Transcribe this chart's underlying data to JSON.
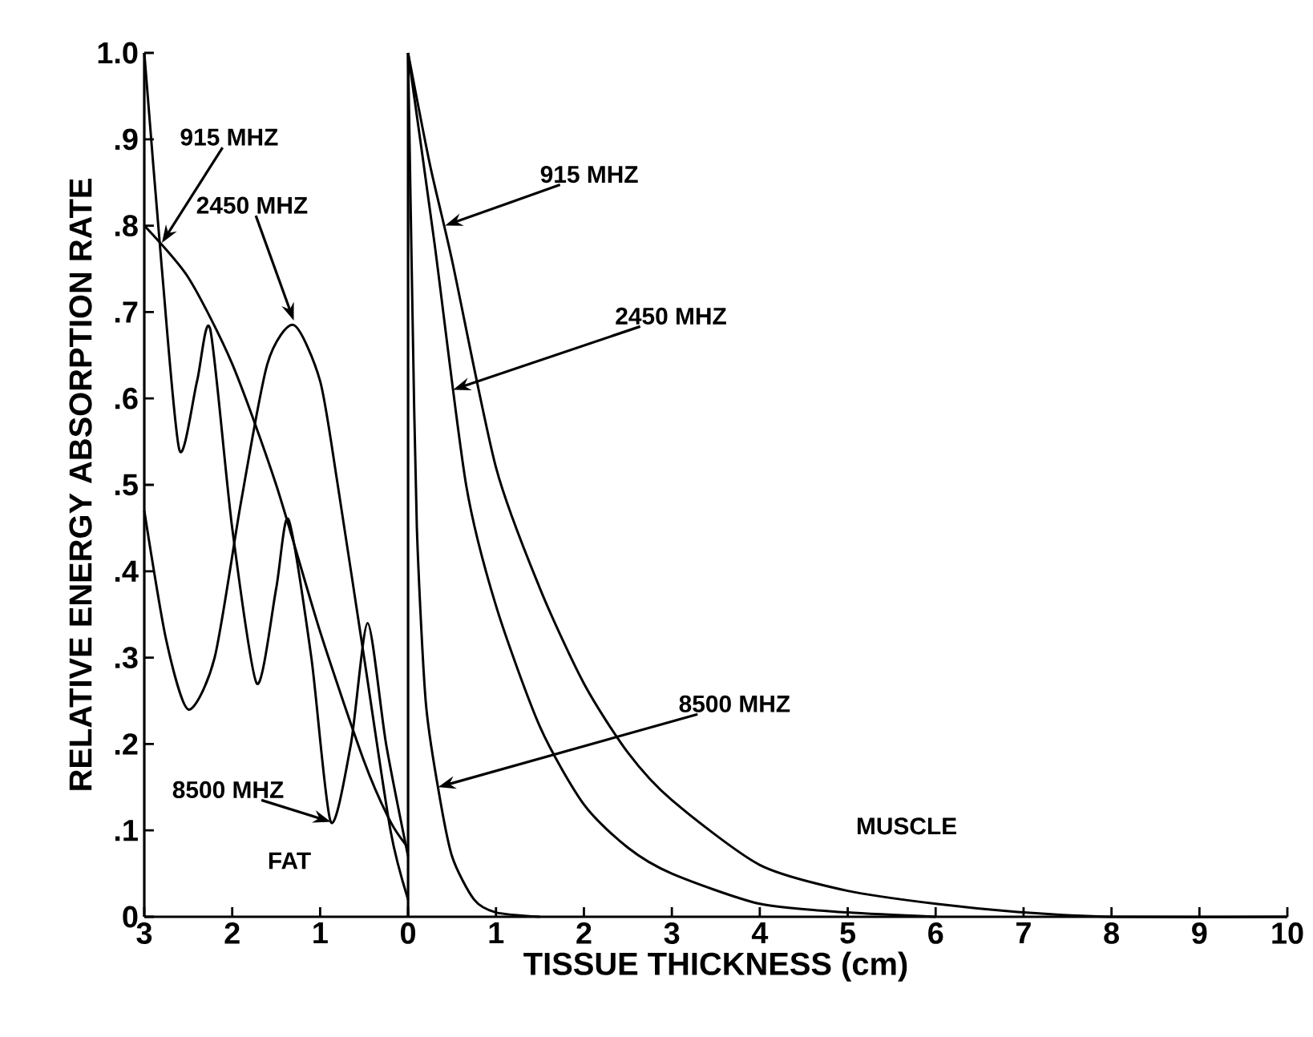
{
  "chart_data": {
    "type": "line",
    "xlabel": "TISSUE THICKNESS (cm)",
    "ylabel": "RELATIVE ENERGY ABSORPTION RATE",
    "marker": "none",
    "xlim": [
      -3,
      10
    ],
    "ylim": [
      0,
      1.0
    ],
    "xticks": [
      {
        "value": -3,
        "label": "3"
      },
      {
        "value": -2,
        "label": "2"
      },
      {
        "value": -1,
        "label": "1"
      },
      0,
      1,
      2,
      3,
      4,
      5,
      6,
      7,
      8,
      9,
      10
    ],
    "yticks": [
      0,
      {
        "value": 0.1,
        "label": ".1"
      },
      {
        "value": 0.2,
        "label": ".2"
      },
      {
        "value": 0.3,
        "label": ".3"
      },
      {
        "value": 0.4,
        "label": ".4"
      },
      {
        "value": 0.5,
        "label": ".5"
      },
      {
        "value": 0.6,
        "label": ".6"
      },
      {
        "value": 0.7,
        "label": ".7"
      },
      {
        "value": 0.8,
        "label": ".8"
      },
      {
        "value": 0.9,
        "label": ".9"
      },
      {
        "value": 1.0,
        "label": "1.0"
      }
    ],
    "series": [
      {
        "color": "#000000",
        "x": [
          -3,
          -2.5,
          -2,
          -1.5,
          -1,
          -0.5,
          -0.2,
          0
        ],
        "values": [
          0.8,
          0.74,
          0.64,
          0.5,
          0.33,
          0.18,
          0.11,
          0.08
        ]
      },
      {
        "color": "#000000",
        "x": [
          -3,
          -2.75,
          -2.5,
          -2.2,
          -1.9,
          -1.6,
          -1.3,
          -1.0,
          -0.8,
          -0.5,
          -0.2,
          0
        ],
        "values": [
          0.47,
          0.32,
          0.24,
          0.3,
          0.48,
          0.64,
          0.685,
          0.62,
          0.5,
          0.3,
          0.1,
          0.02
        ]
      },
      {
        "color": "#000000",
        "x": [
          -3,
          -2.8,
          -2.6,
          -2.4,
          -2.25,
          -2.0,
          -1.72,
          -1.5,
          -1.36,
          -1.1,
          -0.88,
          -0.65,
          -0.46,
          -0.25,
          0
        ],
        "values": [
          1.0,
          0.75,
          0.54,
          0.62,
          0.68,
          0.45,
          0.27,
          0.38,
          0.46,
          0.3,
          0.11,
          0.2,
          0.34,
          0.2,
          0.07
        ]
      },
      {
        "color": "#000000",
        "x": [
          0,
          0.25,
          0.5,
          1,
          1.5,
          2,
          2.5,
          3,
          4,
          5,
          6,
          7,
          8,
          10
        ],
        "values": [
          1.0,
          0.87,
          0.76,
          0.52,
          0.38,
          0.27,
          0.19,
          0.135,
          0.06,
          0.03,
          0.015,
          0.005,
          0,
          0
        ]
      },
      {
        "color": "#000000",
        "x": [
          0,
          0.3,
          0.66,
          1,
          1.5,
          2,
          2.5,
          3,
          4,
          5,
          6
        ],
        "values": [
          1.0,
          0.78,
          0.5,
          0.36,
          0.22,
          0.13,
          0.08,
          0.05,
          0.015,
          0.005,
          0
        ]
      },
      {
        "color": "#000000",
        "x": [
          0,
          0.05,
          0.1,
          0.2,
          0.34,
          0.5,
          0.75,
          1,
          1.5
        ],
        "values": [
          1.0,
          0.7,
          0.45,
          0.25,
          0.15,
          0.07,
          0.02,
          0.005,
          0
        ]
      }
    ],
    "ref_lines": [
      {
        "axis": "x",
        "value": 0
      }
    ],
    "annotations": [
      {
        "text": "915 MHZ",
        "x": -2.8,
        "y": 0.78
      },
      {
        "text": "2450 MHZ",
        "x": -1.3,
        "y": 0.69
      },
      {
        "text": "8500 MHZ",
        "x": -0.88,
        "y": 0.11
      },
      "FAT",
      {
        "text": "915 MHZ",
        "x": 0.42,
        "y": 0.8
      },
      {
        "text": "2450 MHZ",
        "x": 0.51,
        "y": 0.61
      },
      {
        "text": "8500 MHZ",
        "x": 0.34,
        "y": 0.15
      },
      "MUSCLE"
    ]
  }
}
